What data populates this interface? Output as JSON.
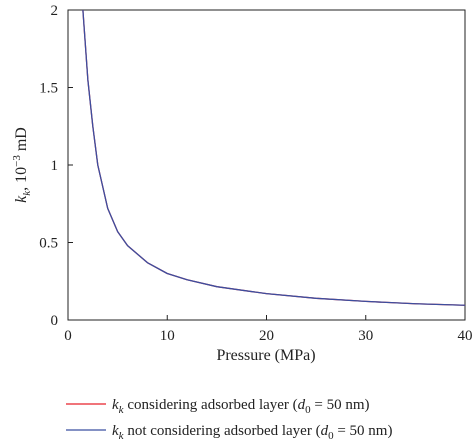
{
  "chart_data": {
    "type": "line",
    "xlabel": "Pressure (MPa)",
    "ylabel": {
      "k_main": "k",
      "k_sub": "k",
      "rest": ", 10",
      "exp": "−3",
      "unit": " mD"
    },
    "xlim": [
      0,
      40
    ],
    "ylim": [
      0,
      2
    ],
    "x_ticks": [
      0,
      10,
      20,
      30,
      40
    ],
    "x_tick_labels": [
      "0",
      "10",
      "20",
      "30",
      "40"
    ],
    "y_ticks": [
      0,
      0.5,
      1,
      1.5,
      2
    ],
    "y_tick_labels": [
      "0",
      "0.5",
      "1",
      "1.5",
      "2"
    ],
    "grid": false,
    "legend_placement": "below",
    "series": [
      {
        "legend_parts": {
          "k": "k",
          "sub": "k",
          "mid": " considering adsorbed layer (",
          "d": "d",
          "dsub": "0",
          "end": " = 50 nm)"
        },
        "color": "#e8202a",
        "x": [
          1.5,
          2,
          2.5,
          3,
          4,
          5,
          6,
          8,
          10,
          12,
          15,
          20,
          25,
          30,
          35,
          40
        ],
        "y": [
          2.0,
          1.55,
          1.25,
          1.0,
          0.72,
          0.57,
          0.48,
          0.37,
          0.3,
          0.26,
          0.215,
          0.17,
          0.14,
          0.12,
          0.105,
          0.095
        ]
      },
      {
        "legend_parts": {
          "k": "k",
          "sub": "k",
          "mid": " not considering adsorbed layer (",
          "d": "d",
          "dsub": "0",
          "end": " = 50 nm)"
        },
        "color": "#3a4fa0",
        "x": [
          1.5,
          2,
          2.5,
          3,
          4,
          5,
          6,
          8,
          10,
          12,
          15,
          20,
          25,
          30,
          35,
          40
        ],
        "y": [
          2.0,
          1.55,
          1.25,
          1.0,
          0.72,
          0.57,
          0.48,
          0.37,
          0.3,
          0.26,
          0.215,
          0.17,
          0.14,
          0.12,
          0.105,
          0.095
        ]
      }
    ]
  }
}
